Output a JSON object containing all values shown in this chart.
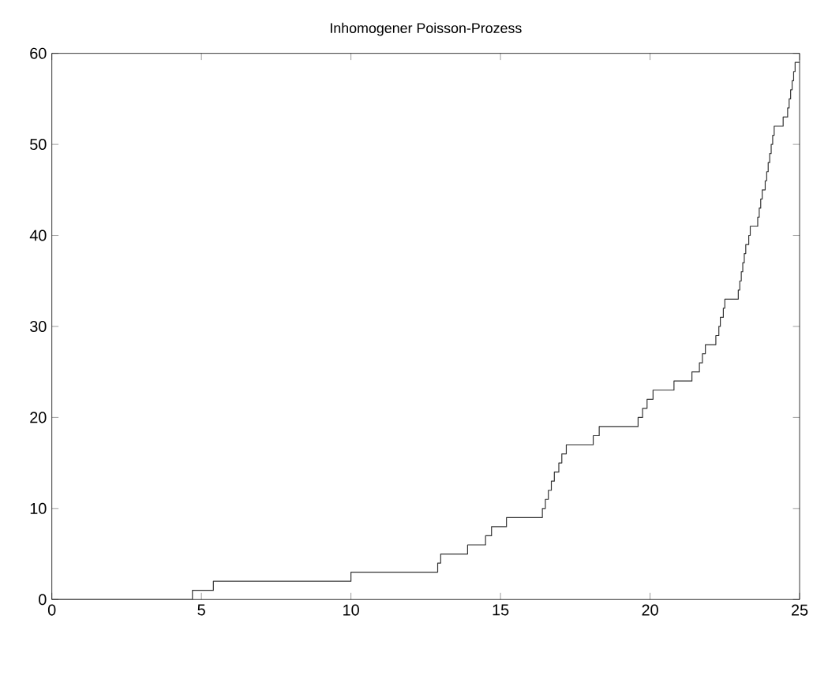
{
  "chart_data": {
    "type": "step",
    "title": "Inhomogener Poisson-Prozess",
    "xlim": [
      0,
      25
    ],
    "ylim": [
      0,
      60
    ],
    "xticks": [
      0,
      5,
      10,
      15,
      20,
      25
    ],
    "yticks": [
      0,
      10,
      20,
      30,
      40,
      50,
      60
    ],
    "grid": false,
    "marker": "none",
    "line_style": "solid",
    "series": [
      {
        "color": "#333333",
        "x": [
          0,
          4.7,
          5.4,
          10.0,
          12.9,
          13.0,
          13.9,
          14.5,
          14.7,
          15.2,
          16.4,
          16.5,
          16.6,
          16.7,
          16.8,
          16.95,
          17.05,
          17.2,
          18.1,
          18.3,
          19.6,
          19.75,
          19.9,
          20.1,
          20.8,
          21.4,
          21.65,
          21.75,
          21.85,
          22.2,
          22.3,
          22.35,
          22.45,
          22.5,
          22.95,
          23.0,
          23.05,
          23.1,
          23.15,
          23.2,
          23.3,
          23.35,
          23.6,
          23.65,
          23.7,
          23.75,
          23.85,
          23.9,
          23.95,
          24.0,
          24.05,
          24.1,
          24.15,
          24.45,
          24.6,
          24.65,
          24.7,
          24.75,
          24.8,
          24.85,
          25
        ],
        "values": [
          0,
          1,
          2,
          3,
          4,
          5,
          6,
          7,
          8,
          9,
          10,
          11,
          12,
          13,
          14,
          15,
          16,
          17,
          18,
          19,
          20,
          21,
          22,
          23,
          24,
          25,
          26,
          27,
          28,
          29,
          30,
          31,
          32,
          33,
          34,
          35,
          36,
          37,
          38,
          39,
          40,
          41,
          42,
          43,
          44,
          45,
          46,
          47,
          48,
          49,
          50,
          51,
          52,
          53,
          54,
          55,
          56,
          57,
          58,
          59,
          59
        ]
      }
    ]
  }
}
